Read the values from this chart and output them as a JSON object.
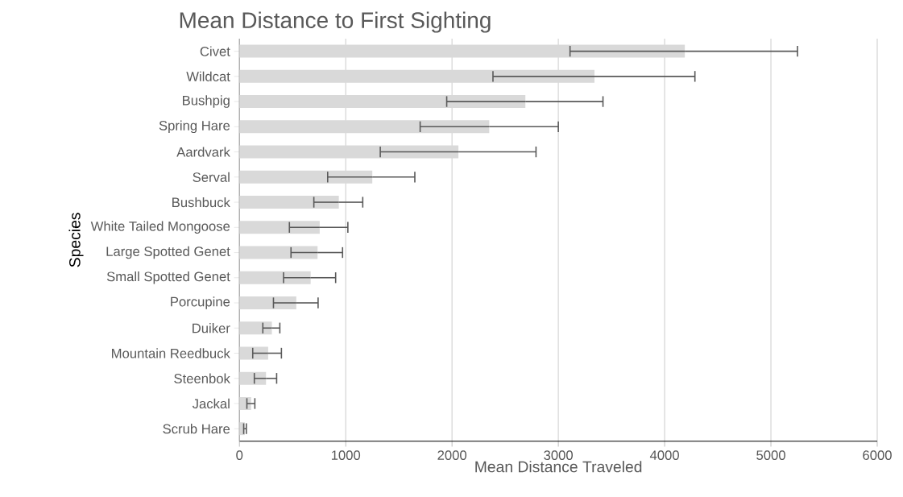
{
  "chart_data": {
    "type": "bar",
    "orientation": "horizontal",
    "title": "Mean Distance to First Sighting",
    "xlabel": "Mean Distance Traveled",
    "ylabel": "Species",
    "categories": [
      "Civet",
      "Wildcat",
      "Bushpig",
      "Spring Hare",
      "Aardvark",
      "Serval",
      "Bushbuck",
      "White Tailed Mongoose",
      "Large Spotted Genet",
      "Small Spotted Genet",
      "Porcupine",
      "Duiker",
      "Mountain Reedbuck",
      "Steenbok",
      "Jackal",
      "Scrub Hare"
    ],
    "values": [
      4190,
      3340,
      2690,
      2350,
      2060,
      1250,
      935,
      755,
      735,
      670,
      535,
      305,
      270,
      250,
      110,
      50
    ],
    "errors": [
      [
        3110,
        5250
      ],
      [
        2385,
        4285
      ],
      [
        1950,
        3420
      ],
      [
        1700,
        3000
      ],
      [
        1325,
        2790
      ],
      [
        830,
        1650
      ],
      [
        700,
        1160
      ],
      [
        470,
        1020
      ],
      [
        485,
        970
      ],
      [
        415,
        905
      ],
      [
        320,
        740
      ],
      [
        220,
        380
      ],
      [
        125,
        395
      ],
      [
        140,
        350
      ],
      [
        70,
        145
      ],
      [
        40,
        65
      ]
    ],
    "color": "#d9d9d9",
    "xlim": [
      0,
      6000
    ],
    "xticks": [
      0,
      1000,
      2000,
      3000,
      4000,
      5000,
      6000
    ],
    "grid": "x"
  }
}
